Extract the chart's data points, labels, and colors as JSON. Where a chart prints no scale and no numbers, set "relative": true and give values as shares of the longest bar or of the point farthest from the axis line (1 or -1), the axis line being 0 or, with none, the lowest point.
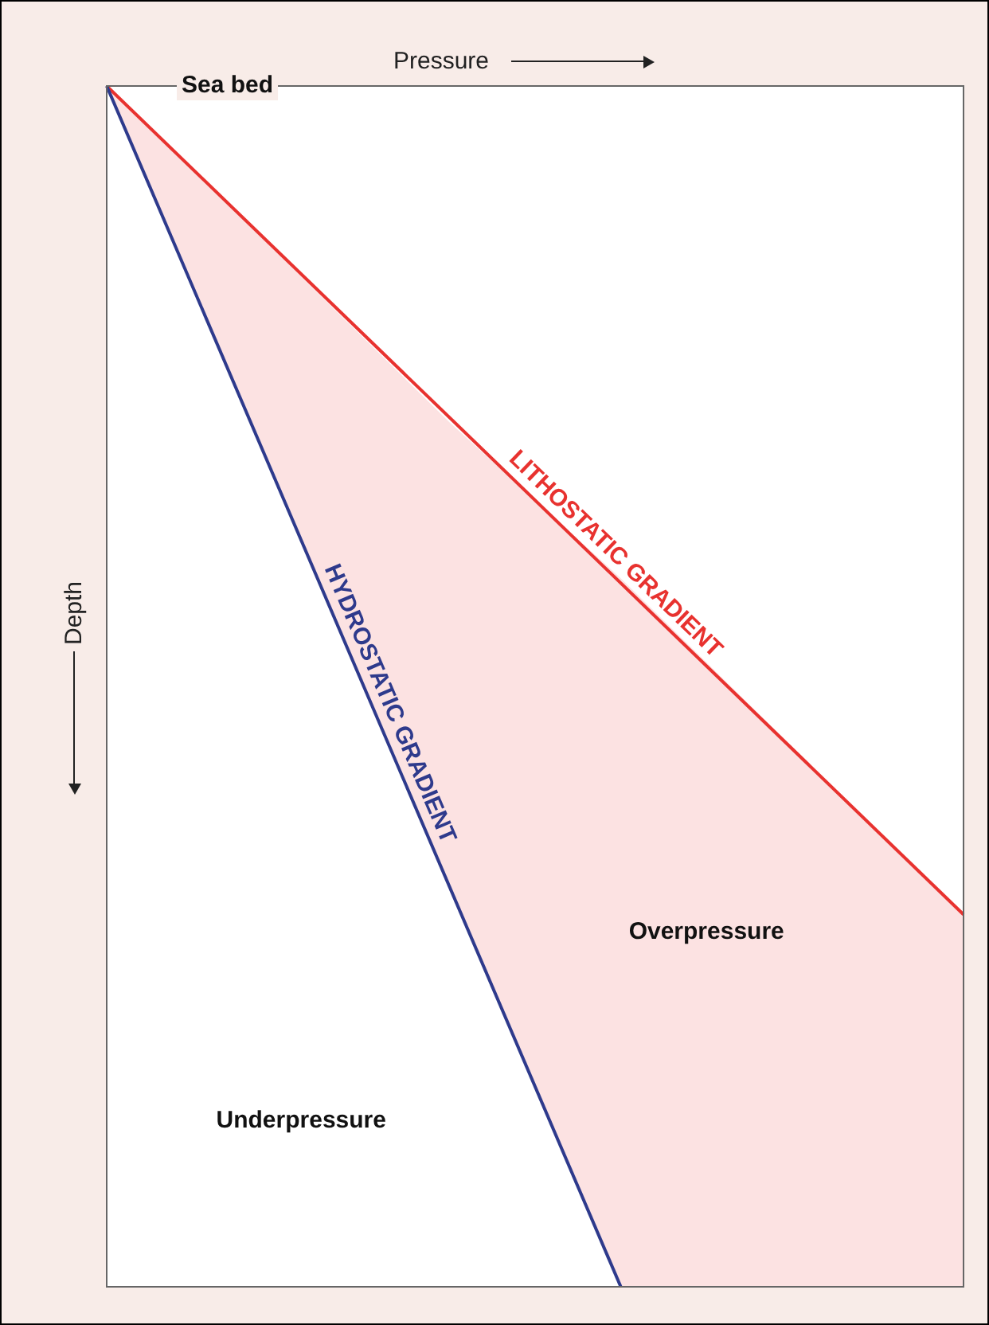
{
  "chart_data": {
    "type": "line",
    "relative": true,
    "xlabel": "Pressure",
    "ylabel": "Depth",
    "marker": "none",
    "line_style": "solid",
    "legend": false,
    "categories": [
      null,
      null,
      null,
      null,
      null,
      null
    ],
    "series": [
      {
        "name": "HYDROSTATIC GRADIENT",
        "color": "#2e3a8c",
        "values": [
          0,
          null,
          null,
          -1,
          null,
          null
        ]
      },
      {
        "name": "LITHOSTATIC GRADIENT",
        "color": "#e8322f",
        "values": [
          0,
          null,
          null,
          null,
          null,
          -0.69
        ],
        "upper": [
          0,
          -0.14,
          -0.28,
          -0.41,
          -0.55,
          -0.69
        ],
        "lower": [
          0,
          -0.33,
          -0.67,
          -1,
          -1,
          -1
        ]
      }
    ],
    "annotations": [
      "Sea bed",
      "Overpressure",
      "Underpressure"
    ]
  }
}
